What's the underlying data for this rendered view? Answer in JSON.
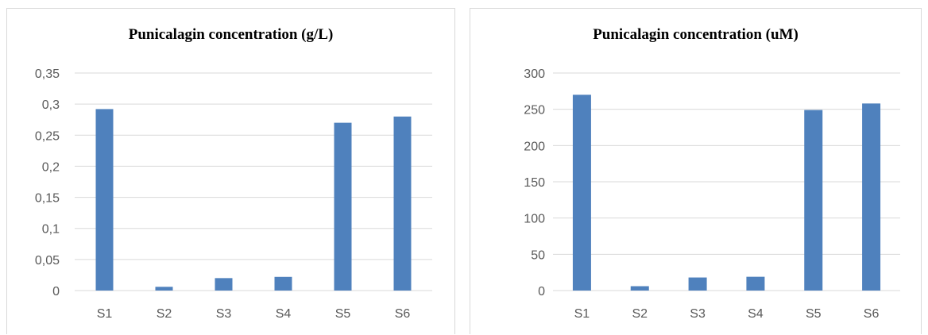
{
  "chart_data": [
    {
      "type": "bar",
      "title": "Punicalagin concentration (g/L)",
      "xlabel": "",
      "ylabel": "",
      "categories": [
        "S1",
        "S2",
        "S3",
        "S4",
        "S5",
        "S6"
      ],
      "values": [
        0.292,
        0.006,
        0.02,
        0.022,
        0.27,
        0.28
      ],
      "ylim": [
        0,
        0.35
      ],
      "yticks": [
        0,
        0.05,
        0.1,
        0.15,
        0.2,
        0.25,
        0.3,
        0.35
      ],
      "ytick_labels": [
        "0",
        "0,05",
        "0,1",
        "0,15",
        "0,2",
        "0,25",
        "0,3",
        "0,35"
      ],
      "grid": true,
      "bar_color": "#4f81bd"
    },
    {
      "type": "bar",
      "title": "Punicalagin concentration (uM)",
      "xlabel": "",
      "ylabel": "",
      "categories": [
        "S1",
        "S2",
        "S3",
        "S4",
        "S5",
        "S6"
      ],
      "values": [
        270,
        6,
        18,
        19,
        249,
        258
      ],
      "ylim": [
        0,
        300
      ],
      "yticks": [
        0,
        50,
        100,
        150,
        200,
        250,
        300
      ],
      "ytick_labels": [
        "0",
        "50",
        "100",
        "150",
        "200",
        "250",
        "300"
      ],
      "grid": true,
      "bar_color": "#4f81bd"
    }
  ]
}
